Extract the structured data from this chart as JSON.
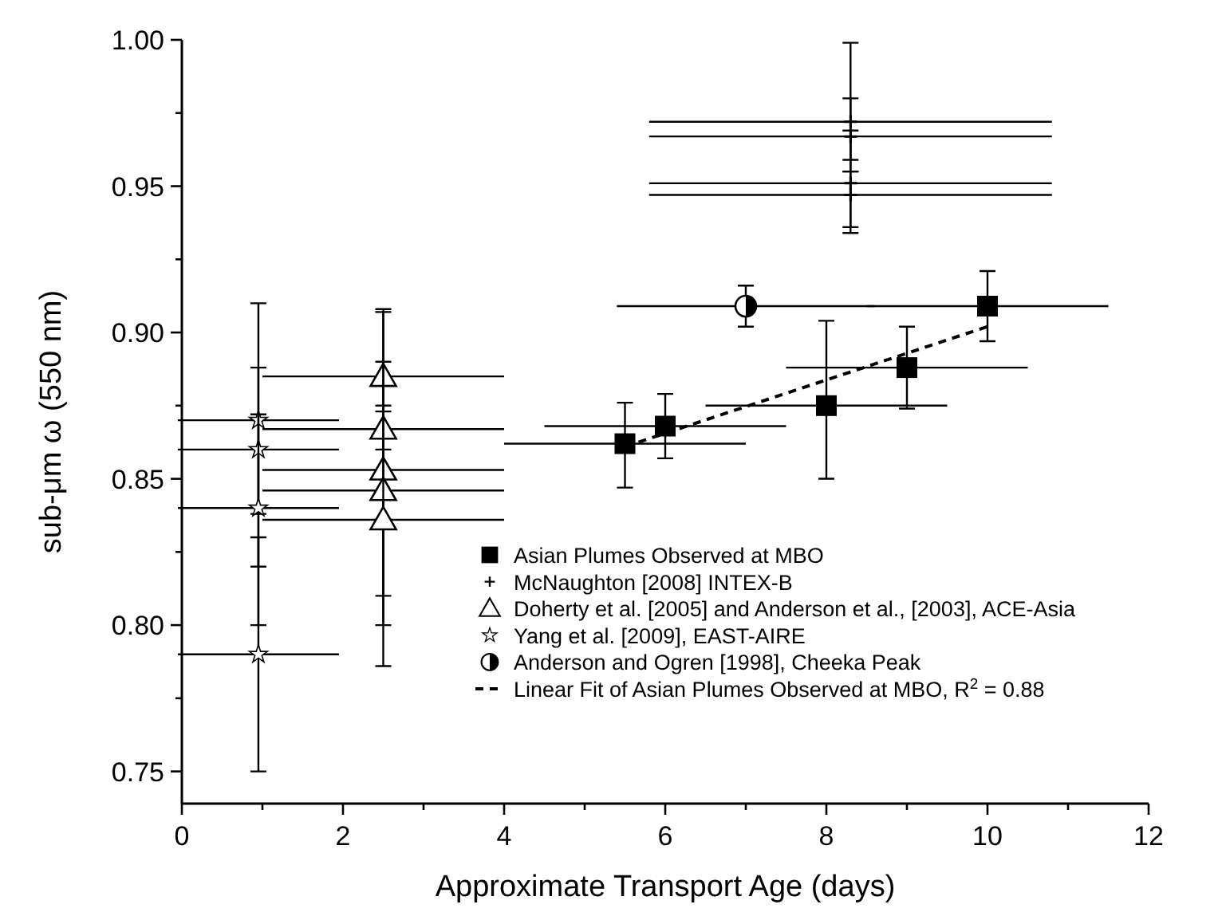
{
  "chart_data": {
    "type": "scatter",
    "xlabel": "Approximate Transport Age (days)",
    "ylabel": "sub-μm ω (550 nm)",
    "xlim": [
      0,
      12
    ],
    "ylim": [
      0.739,
      1.0
    ],
    "xticks": [
      0,
      {
        "value": 1,
        "label": null
      },
      2,
      {
        "value": 3,
        "label": null
      },
      4,
      {
        "value": 5,
        "label": null
      },
      6,
      {
        "value": 7,
        "label": null
      },
      8,
      {
        "value": 9,
        "label": null
      },
      10,
      {
        "value": 11,
        "label": null
      },
      12
    ],
    "yticks": [
      {
        "value": 0.75,
        "label": "0.75"
      },
      {
        "value": 0.775,
        "label": null
      },
      {
        "value": 0.8,
        "label": "0.80"
      },
      {
        "value": 0.825,
        "label": null
      },
      {
        "value": 0.85,
        "label": "0.85"
      },
      {
        "value": 0.875,
        "label": null
      },
      {
        "value": 0.9,
        "label": "0.90"
      },
      {
        "value": 0.925,
        "label": null
      },
      {
        "value": 0.95,
        "label": "0.95"
      },
      {
        "value": 0.975,
        "label": null
      },
      {
        "value": 1.0,
        "label": "1.00"
      }
    ],
    "legend": "bottom right",
    "grid": false,
    "series": [
      {
        "name": "Asian Plumes Observed at MBO",
        "color": "#000000",
        "marker": "square",
        "x": [
          5.5,
          6,
          8,
          9,
          10
        ],
        "values": [
          0.862,
          0.868,
          0.875,
          0.888,
          0.909
        ],
        "errors": [
          [
            0.847,
            0.876
          ],
          [
            0.857,
            0.879
          ],
          [
            0.85,
            0.904
          ],
          [
            0.874,
            0.902
          ],
          [
            0.897,
            0.921
          ]
        ],
        "xerrors": [
          1.5,
          1.5,
          1.5,
          1.5,
          1.5
        ]
      },
      {
        "name": "McNaughton [2008] INTEX-B",
        "color": "#000000",
        "marker": "cross",
        "x": [
          8.3,
          8.3,
          8.3,
          8.3
        ],
        "values": [
          0.972,
          0.967,
          0.951,
          0.947
        ],
        "errors": [
          [
            0.955,
            0.999
          ],
          [
            0.959,
            0.98
          ],
          [
            0.936,
            0.969
          ],
          [
            0.934,
            0.955
          ]
        ],
        "xerrors": [
          2.5,
          2.5,
          2.5,
          2.5
        ]
      },
      {
        "name": "Doherty et al.  [2005] and Anderson et al., [2003], ACE-Asia",
        "color": "#000000",
        "marker": "triangle",
        "x": [
          2.5,
          2.5,
          2.5,
          2.5,
          2.5
        ],
        "values": [
          0.885,
          0.867,
          0.853,
          0.846,
          0.836
        ],
        "errors": [
          [
            0.873,
            0.908
          ],
          [
            0.845,
            0.907
          ],
          [
            0.81,
            0.89
          ],
          [
            0.8,
            0.875
          ],
          [
            0.786,
            0.86
          ]
        ],
        "xerrors": [
          1.5,
          1.5,
          1.5,
          1.5,
          1.5
        ]
      },
      {
        "name": "Yang et al.  [2009], EAST-AIRE",
        "color": "#000000",
        "marker": "star",
        "x": [
          0.95,
          0.95,
          0.95,
          0.95
        ],
        "values": [
          0.87,
          0.86,
          0.84,
          0.79
        ],
        "errors": [
          [
            0.838,
            0.91
          ],
          [
            0.82,
            0.888
          ],
          [
            0.8,
            0.872
          ],
          [
            0.75,
            0.83
          ]
        ],
        "xerrors": [
          1,
          1,
          1,
          1
        ]
      },
      {
        "name": "Anderson and Ogren [1998], Cheeka Peak",
        "color": "#000000",
        "marker": "circle",
        "x": [
          7
        ],
        "values": [
          0.909
        ],
        "errors": [
          [
            0.902,
            0.916
          ]
        ],
        "xerrors": [
          1.6
        ]
      },
      {
        "name": "Linear Fit of Asian Plumes Observed at MBO, R$^{2}$ = 0.88",
        "type": "line",
        "color": "#000000",
        "marker": "none",
        "line_style": "dashed",
        "x": [
          5.5,
          10
        ],
        "values": [
          0.861,
          0.902
        ]
      }
    ]
  }
}
